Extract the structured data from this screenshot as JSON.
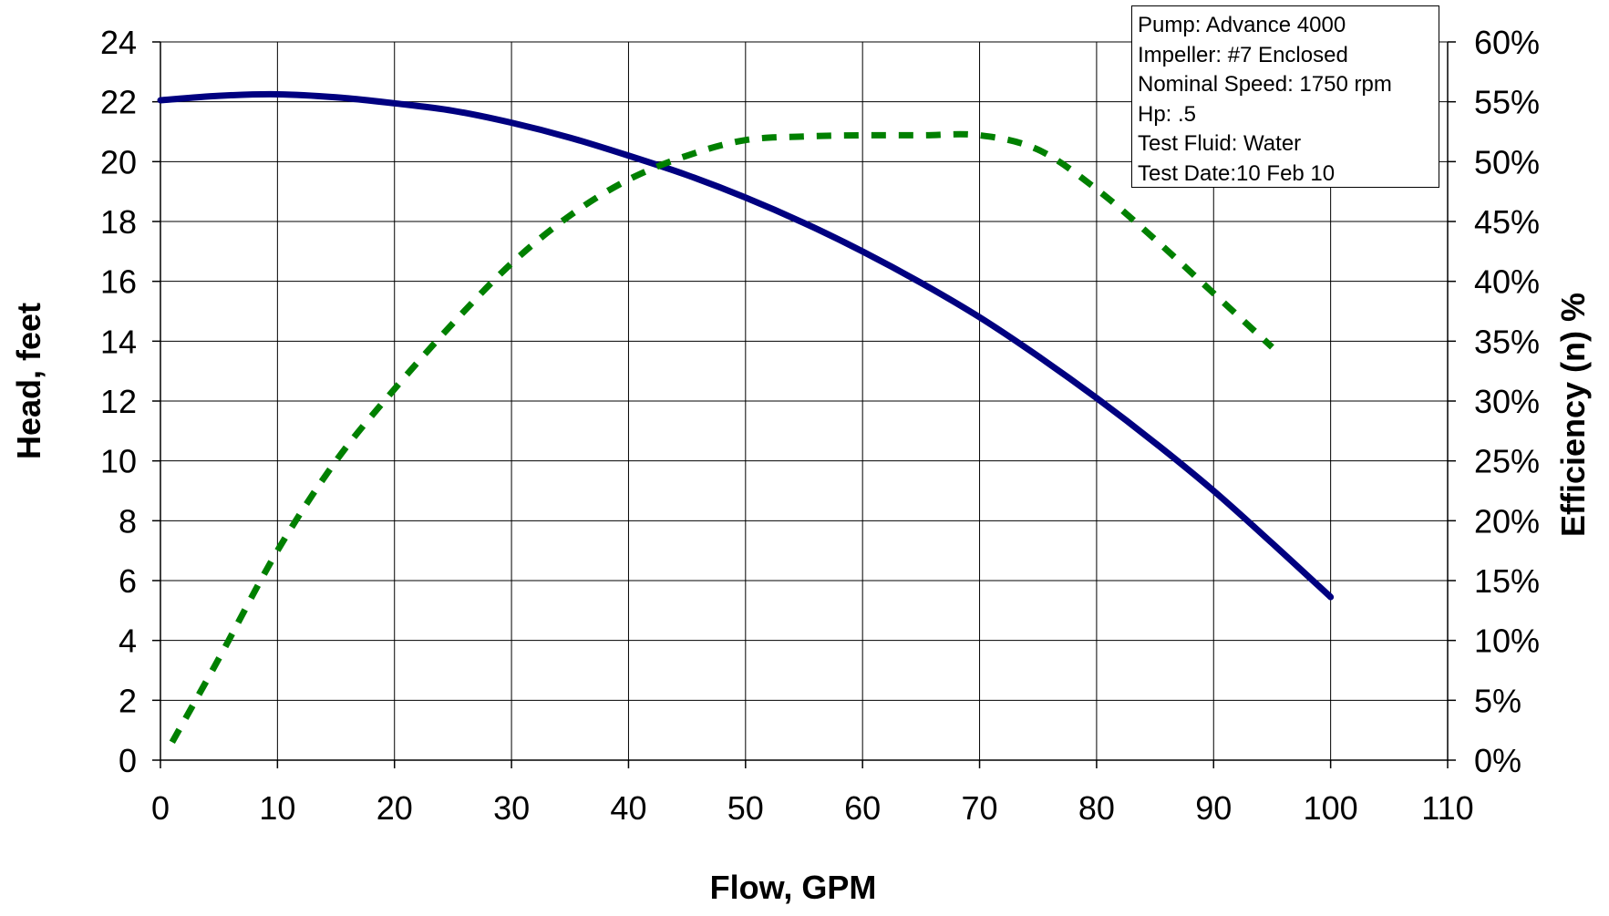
{
  "chart_data": {
    "type": "line",
    "xlabel": "Flow, GPM",
    "ylabel": "Head, feet",
    "y2label": "Efficiency (n) %",
    "xlim": [
      0,
      110
    ],
    "ylim": [
      0,
      24
    ],
    "y2lim": [
      0,
      60
    ],
    "x_ticks": [
      "0",
      "10",
      "20",
      "30",
      "40",
      "50",
      "60",
      "70",
      "80",
      "90",
      "100",
      "110"
    ],
    "y_ticks": [
      "0",
      "2",
      "4",
      "6",
      "8",
      "10",
      "12",
      "14",
      "16",
      "18",
      "20",
      "22",
      "24"
    ],
    "y2_ticks": [
      "0%",
      "5%",
      "10%",
      "15%",
      "20%",
      "25%",
      "30%",
      "35%",
      "40%",
      "45%",
      "50%",
      "55%",
      "60%"
    ],
    "grid": true,
    "series": [
      {
        "axis": "left",
        "color": "#000080",
        "style": "solid",
        "x": [
          0,
          5,
          10,
          15,
          20,
          25,
          30,
          35,
          40,
          45,
          50,
          55,
          60,
          65,
          70,
          75,
          80,
          85,
          90,
          95,
          100
        ],
        "values": [
          22.05,
          22.2,
          22.25,
          22.15,
          21.95,
          21.7,
          21.3,
          20.8,
          20.2,
          19.55,
          18.8,
          17.95,
          17.0,
          15.95,
          14.8,
          13.5,
          12.1,
          10.6,
          9.0,
          7.25,
          5.45
        ]
      },
      {
        "axis": "right",
        "color": "#008000",
        "style": "dashed",
        "x": [
          1,
          5,
          10,
          15,
          20,
          25,
          30,
          35,
          40,
          45,
          50,
          55,
          60,
          65,
          70,
          75,
          80,
          85,
          90,
          95
        ],
        "values": [
          1.5,
          8.5,
          17.5,
          25,
          31,
          36.5,
          41.5,
          45.5,
          48.5,
          50.5,
          51.8,
          52.1,
          52.2,
          52.2,
          52.2,
          51.0,
          47.7,
          43.5,
          39.0,
          34.5
        ]
      }
    ],
    "annotation": [
      "Pump: Advance 4000",
      "Impeller: #7 Enclosed",
      "Nominal Speed: 1750 rpm",
      "Hp: .5",
      "Test Fluid: Water",
      "Test Date:10 Feb 10"
    ]
  }
}
